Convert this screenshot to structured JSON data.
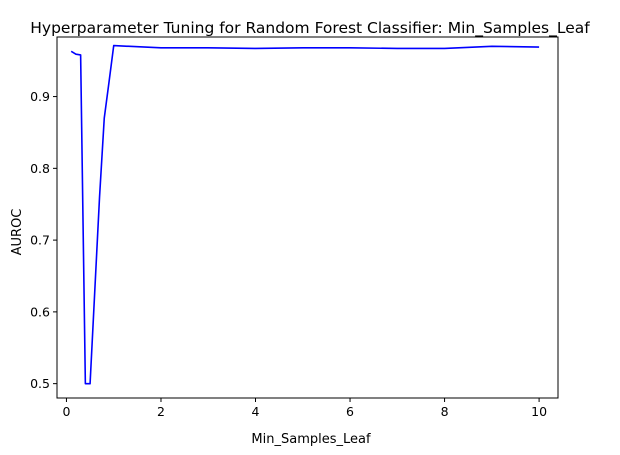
{
  "chart_data": {
    "type": "line",
    "title": "Hyperparameter Tuning for Random Forest Classifier: Min_Samples_Leaf",
    "xlabel": "Min_Samples_Leaf",
    "ylabel": "AUROC",
    "xlim": [
      -0.2,
      10.4
    ],
    "ylim": [
      0.48,
      0.983
    ],
    "x_ticks": [
      0,
      2,
      4,
      6,
      8,
      10
    ],
    "x_tick_labels": [
      "0",
      "2",
      "4",
      "6",
      "8",
      "10"
    ],
    "y_ticks": [
      0.5,
      0.6,
      0.7,
      0.8,
      0.9
    ],
    "y_tick_labels": [
      "0.5",
      "0.6",
      "0.7",
      "0.8",
      "0.9"
    ],
    "grid": false,
    "series": [
      {
        "color": "#0000ff",
        "x": [
          0.1,
          0.2,
          0.3,
          0.4,
          0.5,
          0.6,
          0.7,
          0.8,
          0.9,
          1,
          2,
          3,
          4,
          5,
          6,
          7,
          8,
          9,
          10
        ],
        "y": [
          0.963,
          0.959,
          0.958,
          0.5,
          0.5,
          0.63,
          0.76,
          0.87,
          0.92,
          0.971,
          0.968,
          0.968,
          0.967,
          0.968,
          0.968,
          0.967,
          0.967,
          0.97,
          0.969
        ]
      }
    ]
  }
}
